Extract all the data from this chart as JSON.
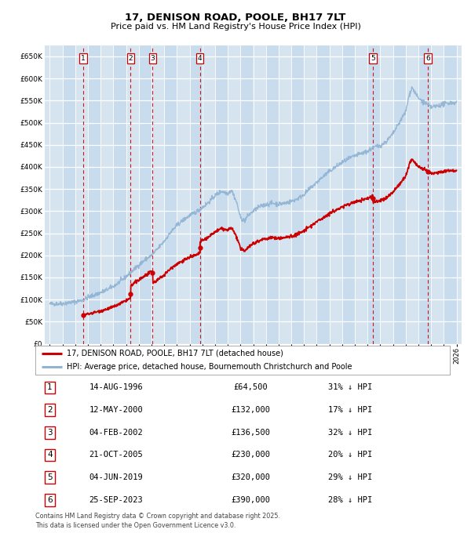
{
  "title": "17, DENISON ROAD, POOLE, BH17 7LT",
  "subtitle": "Price paid vs. HM Land Registry's House Price Index (HPI)",
  "background_color": "#d6e4f0",
  "hpi_color": "#92b4d4",
  "price_color": "#cc0000",
  "ylim": [
    0,
    675000
  ],
  "yticks": [
    0,
    50000,
    100000,
    150000,
    200000,
    250000,
    300000,
    350000,
    400000,
    450000,
    500000,
    550000,
    600000,
    650000
  ],
  "xlim_start": 1993.6,
  "xlim_end": 2026.4,
  "transactions": [
    {
      "num": 1,
      "year": 1996.62,
      "price": 64500,
      "date": "14-AUG-1996",
      "pct": "31% ↓ HPI"
    },
    {
      "num": 2,
      "year": 2000.36,
      "price": 132000,
      "date": "12-MAY-2000",
      "pct": "17% ↓ HPI"
    },
    {
      "num": 3,
      "year": 2002.09,
      "price": 136500,
      "date": "04-FEB-2002",
      "pct": "32% ↓ HPI"
    },
    {
      "num": 4,
      "year": 2005.81,
      "price": 230000,
      "date": "21-OCT-2005",
      "pct": "20% ↓ HPI"
    },
    {
      "num": 5,
      "year": 2019.42,
      "price": 320000,
      "date": "04-JUN-2019",
      "pct": "29% ↓ HPI"
    },
    {
      "num": 6,
      "year": 2023.73,
      "price": 390000,
      "date": "25-SEP-2023",
      "pct": "28% ↓ HPI"
    }
  ],
  "legend_entries": [
    {
      "color": "#cc0000",
      "label": "17, DENISON ROAD, POOLE, BH17 7LT (detached house)"
    },
    {
      "color": "#92b4d4",
      "label": "HPI: Average price, detached house, Bournemouth Christchurch and Poole"
    }
  ],
  "footnote": "Contains HM Land Registry data © Crown copyright and database right 2025.\nThis data is licensed under the Open Government Licence v3.0.",
  "stripe_years": [
    1995,
    1997,
    1999,
    2001,
    2003,
    2005,
    2007,
    2009,
    2011,
    2013,
    2015,
    2017,
    2019,
    2021,
    2023,
    2025
  ]
}
